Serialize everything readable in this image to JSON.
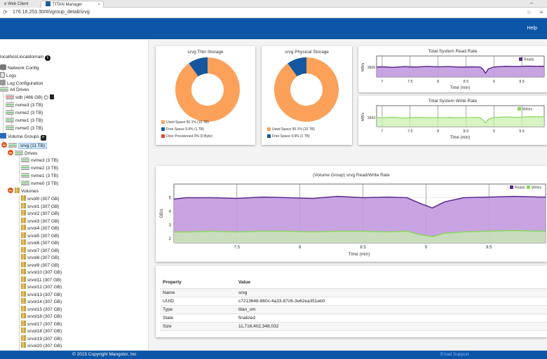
{
  "browser": {
    "tabs": [
      {
        "label": "e Web Client"
      },
      {
        "label": "TITAN Manager"
      }
    ],
    "tab_close": "×",
    "window_min": "–",
    "url": "176.16.253.30/#/vgroup_detail/srvg",
    "nav_icon": "⟳",
    "star_icon": "☆",
    "menu_icon": "≡"
  },
  "header": {
    "help_label": "Help"
  },
  "sidebar": {
    "host": "localhost.localdomain",
    "items": [
      {
        "label": "Network Config",
        "icon": "gear-icon"
      },
      {
        "label": "Logs",
        "icon": "document-icon"
      },
      {
        "label": "Log Configuration",
        "icon": "config-icon"
      },
      {
        "label": "All Drives",
        "icon": "drives-icon"
      }
    ],
    "all_drives": [
      {
        "label": "sdb (466 GB)"
      },
      {
        "label": "nvme3 (3 TB)"
      },
      {
        "label": "nvme2 (3 TB)"
      },
      {
        "label": "nvme1 (3 TB)"
      },
      {
        "label": "nvme0 (3 TB)"
      }
    ],
    "volume_groups_label": "Volume Groups",
    "selected_group": "srvg (11 TB)",
    "drives_label": "Drives",
    "group_drives": [
      {
        "label": "nvme3 (3 TB)"
      },
      {
        "label": "nvme2 (3 TB)"
      },
      {
        "label": "nvme1 (3 TB)"
      },
      {
        "label": "nvme0 (3 TB)"
      }
    ],
    "volumes_label": "Volumes",
    "volumes": [
      {
        "label": "srvol0 (307 GB)"
      },
      {
        "label": "srvol1 (307 GB)"
      },
      {
        "label": "srvol2 (307 GB)"
      },
      {
        "label": "srvol3 (307 GB)"
      },
      {
        "label": "srvol4 (307 GB)"
      },
      {
        "label": "srvol5 (307 GB)"
      },
      {
        "label": "srvol6 (307 GB)"
      },
      {
        "label": "srvol7 (307 GB)"
      },
      {
        "label": "srvol8 (307 GB)"
      },
      {
        "label": "srvol9 (307 GB)"
      },
      {
        "label": "srvol10 (307 GB)"
      },
      {
        "label": "srvol11 (307 GB)"
      },
      {
        "label": "srvol12 (307 GB)"
      },
      {
        "label": "srvol13 (307 GB)"
      },
      {
        "label": "srvol14 (307 GB)"
      },
      {
        "label": "srvol15 (307 GB)"
      },
      {
        "label": "srvol16 (307 GB)"
      },
      {
        "label": "srvol17 (307 GB)"
      },
      {
        "label": "srvol18 (307 GB)"
      },
      {
        "label": "srvol19 (307 GB)"
      },
      {
        "label": "srvol20 (307 GB)"
      }
    ]
  },
  "colors": {
    "header": "#0d55a6",
    "used": "#fba15a",
    "free": "#1457a0",
    "over": "#e2452a",
    "reads": "#5a2a8a",
    "reads_fill": "#c39ae0",
    "writes": "#8ad85a",
    "writes_fill": "#c8f0b0"
  },
  "thin_storage": {
    "title": "srvg Thin Storage",
    "legend": [
      {
        "label": "Used Space 90.1% (10 TB)",
        "color": "#fba15a"
      },
      {
        "label": "Free Space 9.9% (1 TB)",
        "color": "#1457a0"
      },
      {
        "label": "Over Provisioned 0% (0 Byte)",
        "color": "#e2452a"
      }
    ]
  },
  "physical_storage": {
    "title": "srvg Physical Storage",
    "legend": [
      {
        "label": "Used Space 90.1% (10 TB)",
        "color": "#fba15a"
      },
      {
        "label": "Free Space 9.9% (1 TB)",
        "color": "#1457a0"
      }
    ]
  },
  "read_rate": {
    "title": "Total System Read Rate",
    "ylabel": "MB/s",
    "ytick": "3609",
    "xlabel": "Time (min)",
    "legend": "Reads"
  },
  "write_rate": {
    "title": "Total System Write Rate",
    "ylabel": "MB/s",
    "ytick": "1843",
    "xlabel": "Time (min)",
    "legend": "Writes"
  },
  "rw_chart": {
    "title": "(Volume Group) srvg Read/Write Rate",
    "ylabel": "GB/s",
    "xlabel": "Time (min)",
    "legend_reads": "Reads",
    "legend_writes": "Writes"
  },
  "chart_data": [
    {
      "type": "pie",
      "title": "srvg Thin Storage",
      "categories": [
        "Used Space",
        "Free Space",
        "Over Provisioned"
      ],
      "values": [
        90.1,
        9.9,
        0
      ]
    },
    {
      "type": "pie",
      "title": "srvg Physical Storage",
      "categories": [
        "Used Space",
        "Free Space"
      ],
      "values": [
        90.1,
        9.9
      ]
    },
    {
      "type": "area",
      "title": "Total System Read Rate",
      "xlabel": "Time (min)",
      "ylabel": "MB/s",
      "x_ticks": [
        "7",
        "7.5",
        "8",
        "8.5",
        "9",
        "9.5"
      ],
      "xlim": [
        6.9,
        9.9
      ],
      "ylim": [
        3000,
        4300
      ],
      "series": [
        {
          "name": "Reads",
          "x": [
            6.9,
            7.0,
            7.2,
            7.4,
            7.6,
            7.8,
            8.0,
            8.2,
            8.4,
            8.6,
            8.75,
            8.8,
            8.85,
            8.9,
            9.0,
            9.1,
            9.2,
            9.4,
            9.6,
            9.8,
            9.9
          ],
          "values": [
            3620,
            3630,
            3600,
            3640,
            3620,
            3650,
            3630,
            3640,
            3610,
            3630,
            3620,
            3500,
            3240,
            3500,
            3620,
            3640,
            3660,
            3650,
            3670,
            3660,
            3665
          ]
        }
      ]
    },
    {
      "type": "area",
      "title": "Total System Write Rate",
      "xlabel": "Time (min)",
      "ylabel": "MB/s",
      "x_ticks": [
        "7",
        "7.5",
        "8",
        "8.5",
        "9",
        "9.5"
      ],
      "xlim": [
        6.9,
        9.9
      ],
      "ylim": [
        1500,
        2300
      ],
      "series": [
        {
          "name": "Writes",
          "x": [
            6.9,
            7.0,
            7.2,
            7.4,
            7.6,
            7.8,
            8.0,
            8.2,
            8.4,
            8.6,
            8.75,
            8.8,
            8.85,
            8.9,
            9.0,
            9.1,
            9.2,
            9.4,
            9.6,
            9.8,
            9.9
          ],
          "values": [
            1843,
            1840,
            1860,
            1830,
            1850,
            1845,
            1835,
            1850,
            1840,
            1855,
            1845,
            1760,
            1640,
            1780,
            1850,
            1860,
            1870,
            1855,
            1880,
            1875,
            1878
          ]
        }
      ]
    },
    {
      "type": "area",
      "title": "(Volume Group) srvg Read/Write Rate",
      "xlabel": "Time (min)",
      "ylabel": "GB/s",
      "x_ticks": [
        "7.5",
        "8",
        "8.5",
        "9",
        "9.5"
      ],
      "y_ticks": [
        "2",
        "3",
        "4",
        "5"
      ],
      "xlim": [
        7.0,
        9.95
      ],
      "ylim": [
        1.7,
        6.0
      ],
      "series": [
        {
          "name": "Reads",
          "x": [
            7.0,
            7.1,
            7.3,
            7.5,
            7.7,
            7.9,
            8.1,
            8.3,
            8.5,
            8.7,
            8.85,
            8.95,
            9.05,
            9.15,
            9.3,
            9.5,
            9.7,
            9.9,
            9.95
          ],
          "values": [
            4.9,
            5.0,
            5.0,
            4.95,
            5.05,
            5.0,
            4.95,
            5.1,
            5.0,
            5.05,
            5.0,
            4.6,
            4.25,
            4.7,
            5.0,
            5.05,
            5.1,
            5.05,
            5.05
          ]
        },
        {
          "name": "Writes",
          "x": [
            7.0,
            7.1,
            7.3,
            7.5,
            7.7,
            7.9,
            8.1,
            8.3,
            8.5,
            8.7,
            8.85,
            8.95,
            9.05,
            9.15,
            9.3,
            9.5,
            9.7,
            9.9,
            9.95
          ],
          "values": [
            2.5,
            2.5,
            2.55,
            2.5,
            2.55,
            2.55,
            2.5,
            2.55,
            2.55,
            2.5,
            2.55,
            2.3,
            2.15,
            2.4,
            2.5,
            2.55,
            2.6,
            2.55,
            2.55
          ]
        }
      ]
    }
  ],
  "properties": {
    "headers": [
      "Property",
      "Value"
    ],
    "rows": [
      [
        "Name",
        "srvg"
      ],
      [
        "UUID",
        "c7213648-860c-4a33-87c6-3e62ea351eb0"
      ],
      [
        "Type",
        "titan_vm"
      ],
      [
        "State",
        "finalized"
      ],
      [
        "Size",
        "11,716,402,348,032"
      ]
    ]
  },
  "footer": {
    "copyright": "© 2015 Copyright Mangstor, Inc",
    "support": "Email Support"
  }
}
